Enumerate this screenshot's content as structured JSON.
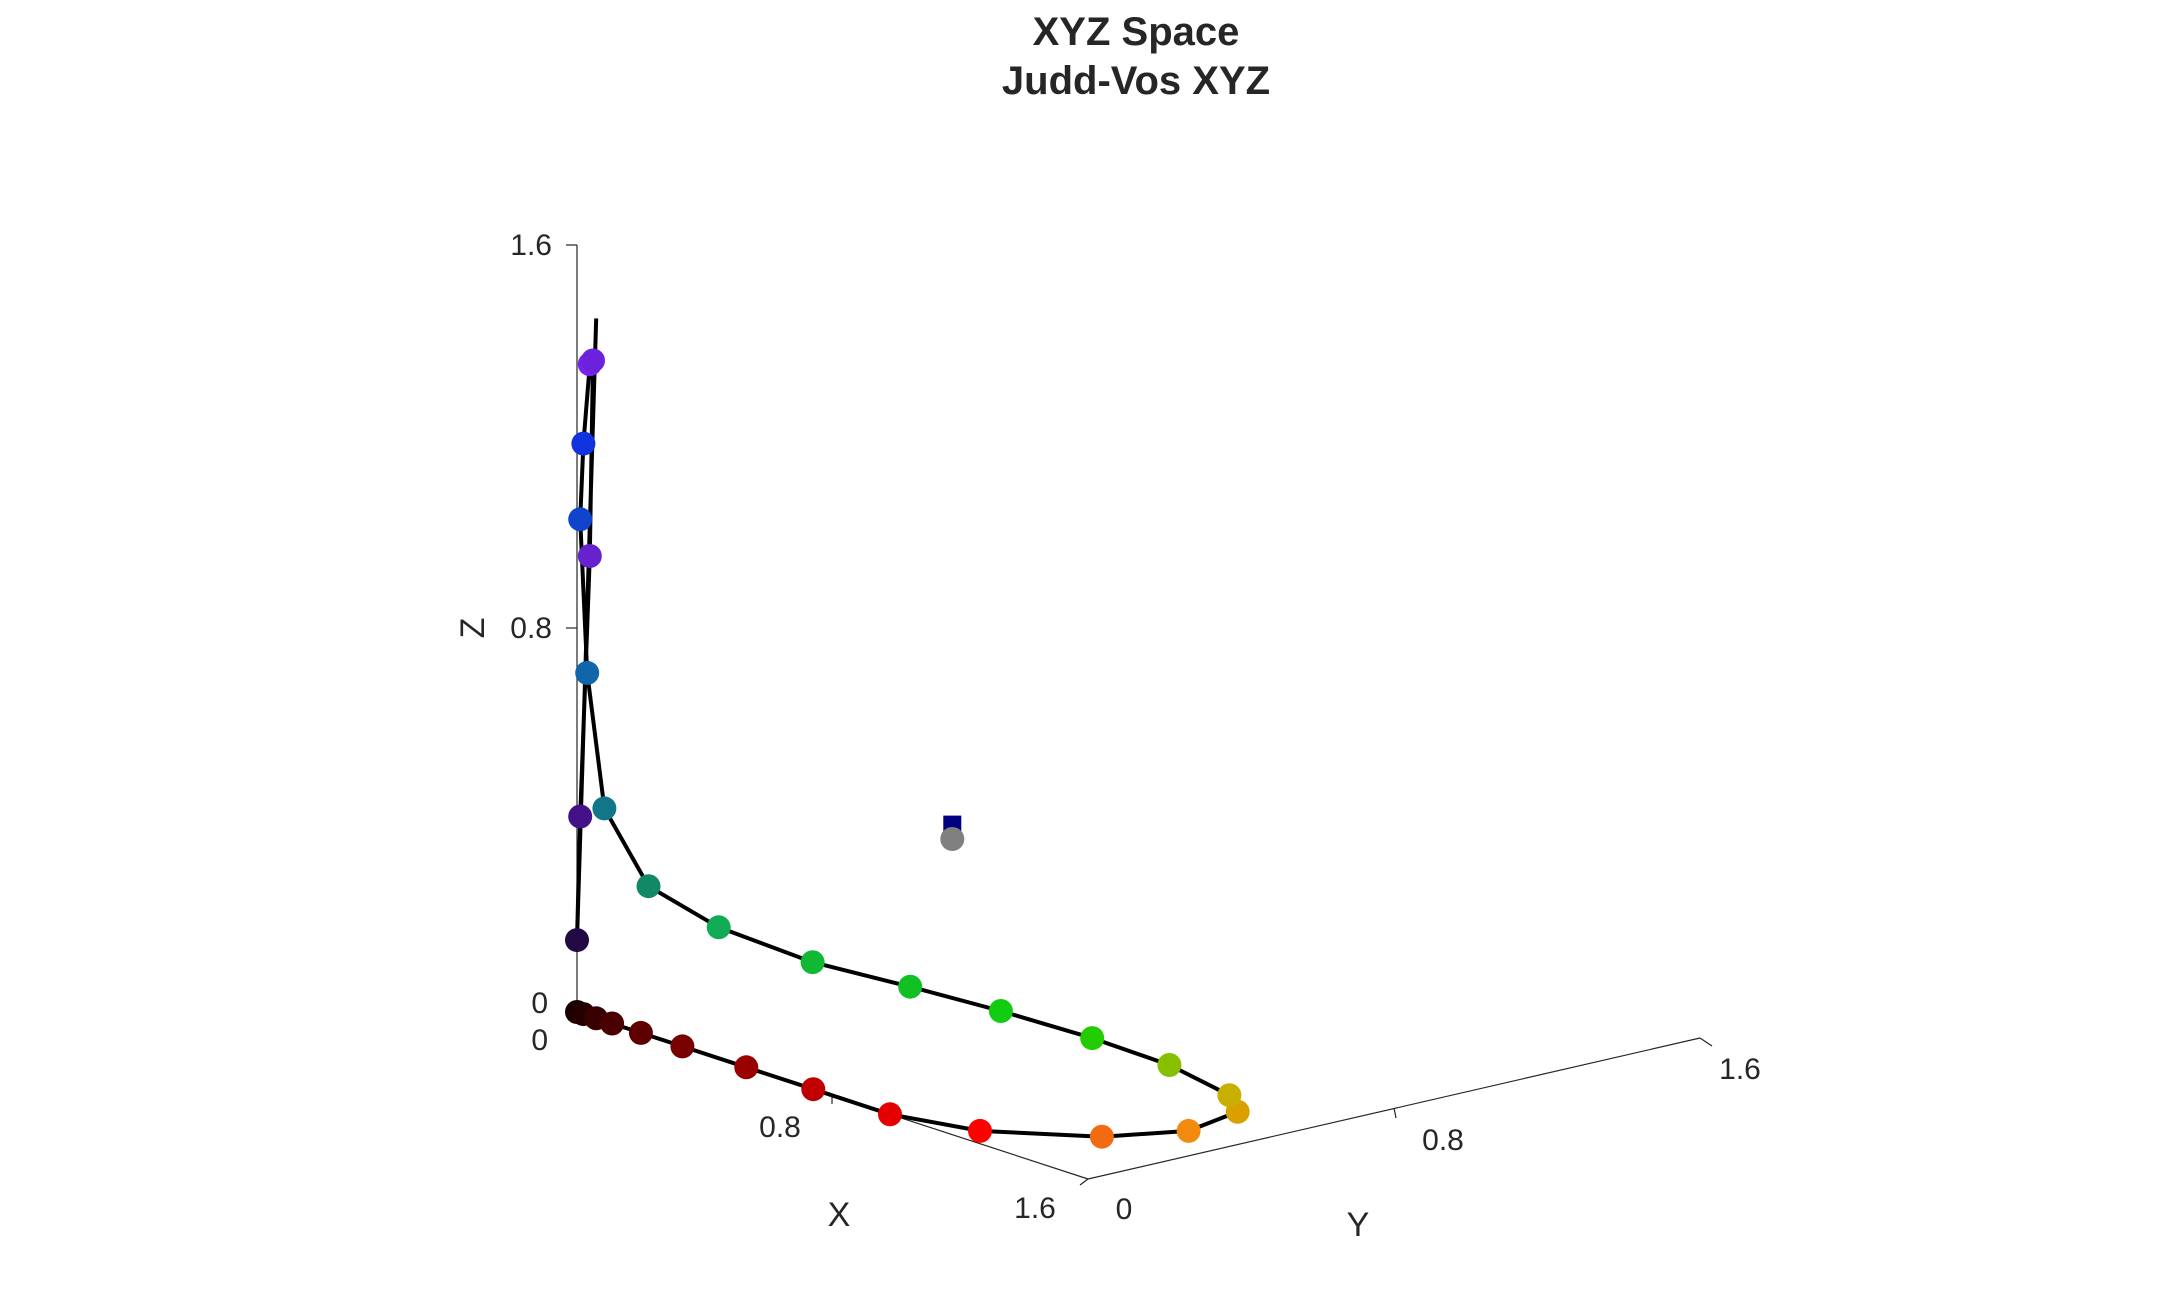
{
  "chart_data": {
    "type": "scatter",
    "title_lines": [
      "XYZ Space",
      "Judd-Vos XYZ"
    ],
    "xlabel": "X",
    "ylabel": "Y",
    "zlabel": "Z",
    "xlim": [
      0,
      1.6
    ],
    "ylim": [
      0,
      1.6
    ],
    "zlim": [
      0,
      1.6
    ],
    "x_ticks": [
      "0",
      "0.8",
      "1.6"
    ],
    "y_ticks": [
      "0",
      "0.8",
      "1.6"
    ],
    "z_ticks": [
      "0",
      "0.8",
      "1.6"
    ],
    "grid": false,
    "spectrum_locus": {
      "line_color": "#000000",
      "points": [
        {
          "x": 0.0,
          "y": 0.0,
          "z": 0.0,
          "color": "#1a0000"
        },
        {
          "x": 0.02,
          "y": 0.0,
          "z": 0.0,
          "color": "#260000"
        },
        {
          "x": 0.06,
          "y": 0.0,
          "z": 0.0,
          "color": "#380000"
        },
        {
          "x": 0.11,
          "y": 0.0,
          "z": 0.0,
          "color": "#4a0000"
        },
        {
          "x": 0.2,
          "y": 0.0,
          "z": 0.0,
          "color": "#5e0000"
        },
        {
          "x": 0.33,
          "y": 0.0,
          "z": 0.0,
          "color": "#780000"
        },
        {
          "x": 0.53,
          "y": 0.0,
          "z": 0.0,
          "color": "#990000"
        },
        {
          "x": 0.74,
          "y": 0.0,
          "z": 0.0,
          "color": "#c00000"
        },
        {
          "x": 0.98,
          "y": 0.0,
          "z": 0.0,
          "color": "#e40000"
        },
        {
          "x": 1.13,
          "y": 0.06,
          "z": 0.0,
          "color": "#ff0000"
        },
        {
          "x": 1.16,
          "y": 0.22,
          "z": 0.0,
          "color": "#f36b10"
        },
        {
          "x": 1.08,
          "y": 0.38,
          "z": 0.0,
          "color": "#f28a10"
        },
        {
          "x": 0.97,
          "y": 0.5,
          "z": 0.02,
          "color": "#d9a000"
        },
        {
          "x": 0.9,
          "y": 0.52,
          "z": 0.04,
          "color": "#c8b000"
        },
        {
          "x": 0.8,
          "y": 0.48,
          "z": 0.08,
          "color": "#88c000"
        },
        {
          "x": 0.69,
          "y": 0.42,
          "z": 0.11,
          "color": "#22cc00"
        },
        {
          "x": 0.58,
          "y": 0.34,
          "z": 0.14,
          "color": "#11cc11"
        },
        {
          "x": 0.45,
          "y": 0.27,
          "z": 0.16,
          "color": "#11c022"
        },
        {
          "x": 0.32,
          "y": 0.19,
          "z": 0.18,
          "color": "#11b833"
        },
        {
          "x": 0.18,
          "y": 0.12,
          "z": 0.22,
          "color": "#11aa55"
        },
        {
          "x": 0.07,
          "y": 0.07,
          "z": 0.28,
          "color": "#118866"
        },
        {
          "x": 0.02,
          "y": 0.03,
          "z": 0.43,
          "color": "#117788"
        },
        {
          "x": 0.01,
          "y": 0.01,
          "z": 0.71,
          "color": "#1166aa"
        },
        {
          "x": 0.01,
          "y": 0.0,
          "z": 1.03,
          "color": "#1144cc"
        },
        {
          "x": 0.02,
          "y": 0.0,
          "z": 1.19,
          "color": "#1133dd"
        },
        {
          "x": 0.04,
          "y": 0.0,
          "z": 1.36,
          "color": "#7722ee"
        },
        {
          "x": 0.05,
          "y": 0.0,
          "z": 1.37,
          "color": "#6a22dd"
        },
        {
          "x": 0.04,
          "y": 0.0,
          "z": 0.96,
          "color": "#6622cc"
        },
        {
          "x": 0.01,
          "y": 0.0,
          "z": 0.41,
          "color": "#441188"
        },
        {
          "x": 0.0,
          "y": 0.0,
          "z": 0.15,
          "color": "#220a44"
        }
      ]
    },
    "special_points": [
      {
        "x": 0.45,
        "y": 0.33,
        "z": 0.5,
        "color": "#000080",
        "marker": "square"
      },
      {
        "x": 0.45,
        "y": 0.33,
        "z": 0.47,
        "color": "#808080",
        "marker": "circle"
      }
    ]
  }
}
